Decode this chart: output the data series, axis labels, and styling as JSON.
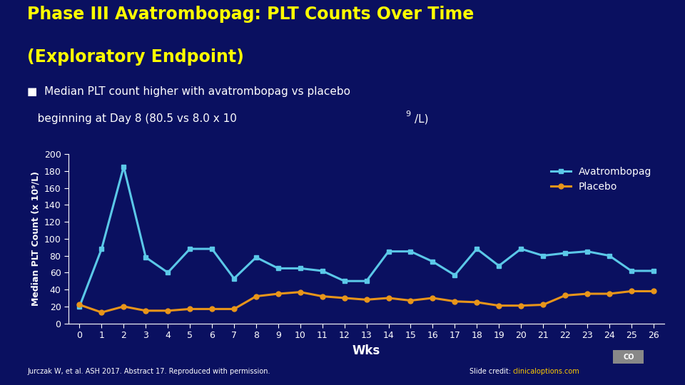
{
  "bg_color": "#0a1060",
  "title_line1": "Phase III Avatrombopag: PLT Counts Over Time",
  "title_line2": "(Exploratory Endpoint)",
  "title_color": "#ffff00",
  "bullet_color": "#ffffff",
  "ylabel": "Median PLT Count (x 10⁹/L)",
  "xlabel": "Wks",
  "ylabel_color": "#ffffff",
  "xlabel_color": "#ffffff",
  "x_ticks": [
    0,
    1,
    2,
    3,
    4,
    5,
    6,
    7,
    8,
    9,
    10,
    11,
    12,
    13,
    14,
    15,
    16,
    17,
    18,
    19,
    20,
    21,
    22,
    23,
    24,
    25,
    26
  ],
  "ylim": [
    0,
    200
  ],
  "yticks": [
    0,
    20,
    40,
    60,
    80,
    100,
    120,
    140,
    160,
    180,
    200
  ],
  "avatrombopag_x": [
    0,
    1,
    2,
    3,
    4,
    5,
    6,
    7,
    8,
    9,
    10,
    11,
    12,
    13,
    14,
    15,
    16,
    17,
    18,
    19,
    20,
    21,
    22,
    23,
    24,
    25,
    26
  ],
  "avatrombopag_y": [
    20,
    88,
    185,
    78,
    60,
    88,
    88,
    53,
    78,
    65,
    65,
    62,
    50,
    50,
    85,
    85,
    73,
    57,
    88,
    68,
    88,
    80,
    83,
    85,
    80,
    62,
    62
  ],
  "placebo_x": [
    0,
    1,
    2,
    3,
    4,
    5,
    6,
    7,
    8,
    9,
    10,
    11,
    12,
    13,
    14,
    15,
    16,
    17,
    18,
    19,
    20,
    21,
    22,
    23,
    24,
    25,
    26
  ],
  "placebo_y": [
    22,
    13,
    20,
    15,
    15,
    17,
    17,
    17,
    32,
    35,
    37,
    32,
    30,
    28,
    30,
    27,
    30,
    26,
    25,
    21,
    21,
    22,
    33,
    35,
    35,
    38,
    38
  ],
  "avatrombopag_color": "#5bc8e8",
  "placebo_color": "#e8951a",
  "legend_label_avat": "Avatrombopag",
  "legend_label_plac": "Placebo",
  "tick_color": "#ffffff",
  "axis_color": "#ffffff",
  "footnote_left": "Jurczak W, et al. ASH 2017. Abstract 17. Reproduced with permission.",
  "footnote_color": "#ffffff",
  "footnote_link_color": "#ffcc00"
}
